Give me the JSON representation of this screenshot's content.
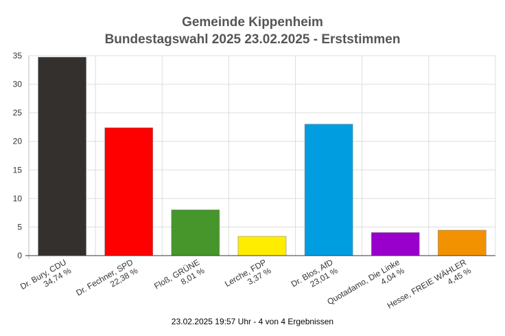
{
  "chart_data": {
    "type": "bar",
    "title": "Gemeinde Kippenheim",
    "subtitle": "Bundestagswahl 2025 23.02.2025  - Erststimmen",
    "categories": [
      "Dr. Bury, CDU",
      "Dr. Fechner, SPD",
      "Floß, GRÜNE",
      "Lerche, FDP",
      "Dr. Blos, AfD",
      "Quotadamo, Die Linke",
      "Hesse, FREIE WÄHLER"
    ],
    "values": [
      34.74,
      22.38,
      8.01,
      3.37,
      23.01,
      4.04,
      4.45
    ],
    "value_labels": [
      "34,74 %",
      "22,38 %",
      "8,01 %",
      "3,37 %",
      "23,01 %",
      "4,04 %",
      "4,45 %"
    ],
    "colors": [
      "#33302e",
      "#ff0000",
      "#46962b",
      "#ffed00",
      "#009ee0",
      "#9900cc",
      "#f39200"
    ],
    "yticks": [
      0,
      5,
      10,
      15,
      20,
      25,
      30,
      35
    ],
    "ylim": [
      0,
      35
    ],
    "xlabel": "",
    "ylabel": "",
    "grid": true
  },
  "footer": "23.02.2025 19:57 Uhr - 4 von 4 Ergebnissen"
}
